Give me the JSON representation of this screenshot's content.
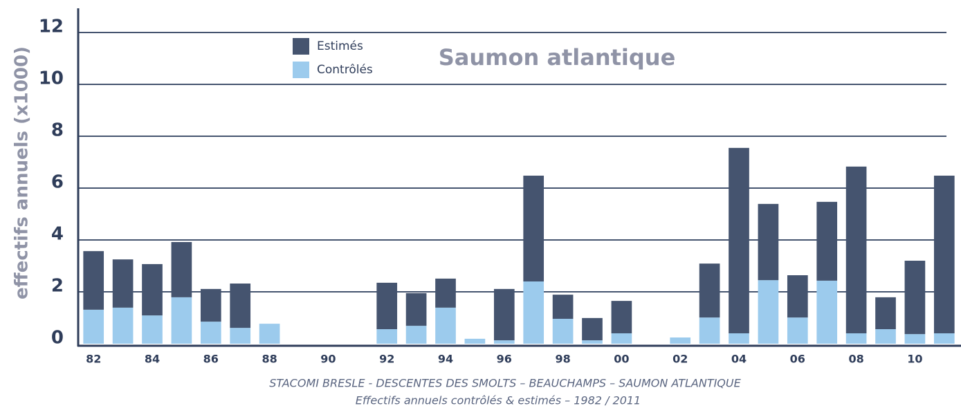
{
  "chart_data": {
    "type": "stacked_bar",
    "title": "Saumon atlantique",
    "y_label": "effectifs annuels (x1000)",
    "caption": [
      "STACOMI BRESLE - DESCENTES DES SMOLTS – BEAUCHAMPS – SAUMON ATLANTIQUE",
      "Effectifs annuels contrôlés & estimés – 1982 / 2011"
    ],
    "categories": [
      "82",
      null,
      "84",
      null,
      "86",
      null,
      "88",
      null,
      "90",
      null,
      "92",
      null,
      "94",
      null,
      "96",
      null,
      "98",
      null,
      "00",
      null,
      "02",
      null,
      "04",
      null,
      "06",
      null,
      "08",
      null,
      "10",
      null
    ],
    "series": [
      {
        "name": "Estimés",
        "color": "#45546f",
        "values": [
          2.26,
          1.86,
          1.98,
          2.13,
          1.26,
          1.71,
          0,
          0,
          0,
          0,
          1.79,
          1.26,
          1.12,
          0,
          1.98,
          4.08,
          0.93,
          0.86,
          1.25,
          0,
          0,
          2.08,
          7.15,
          2.94,
          1.63,
          3.04,
          6.43,
          1.23,
          2.83,
          6.08
        ]
      },
      {
        "name": "Contrôlés",
        "color": "#9ccbed",
        "values": [
          1.31,
          1.39,
          1.09,
          1.79,
          0.85,
          0.61,
          0.77,
          0,
          0,
          0,
          0.56,
          0.69,
          1.39,
          0.19,
          0.13,
          2.4,
          0.96,
          0.13,
          0.4,
          0,
          0.24,
          1.01,
          0.4,
          2.45,
          1.01,
          2.43,
          0.4,
          0.56,
          0.37,
          0.4
        ]
      }
    ],
    "ylim": [
      0,
      12
    ],
    "yticks": [
      0,
      2,
      4,
      6,
      8,
      10,
      12
    ],
    "grid": true
  }
}
